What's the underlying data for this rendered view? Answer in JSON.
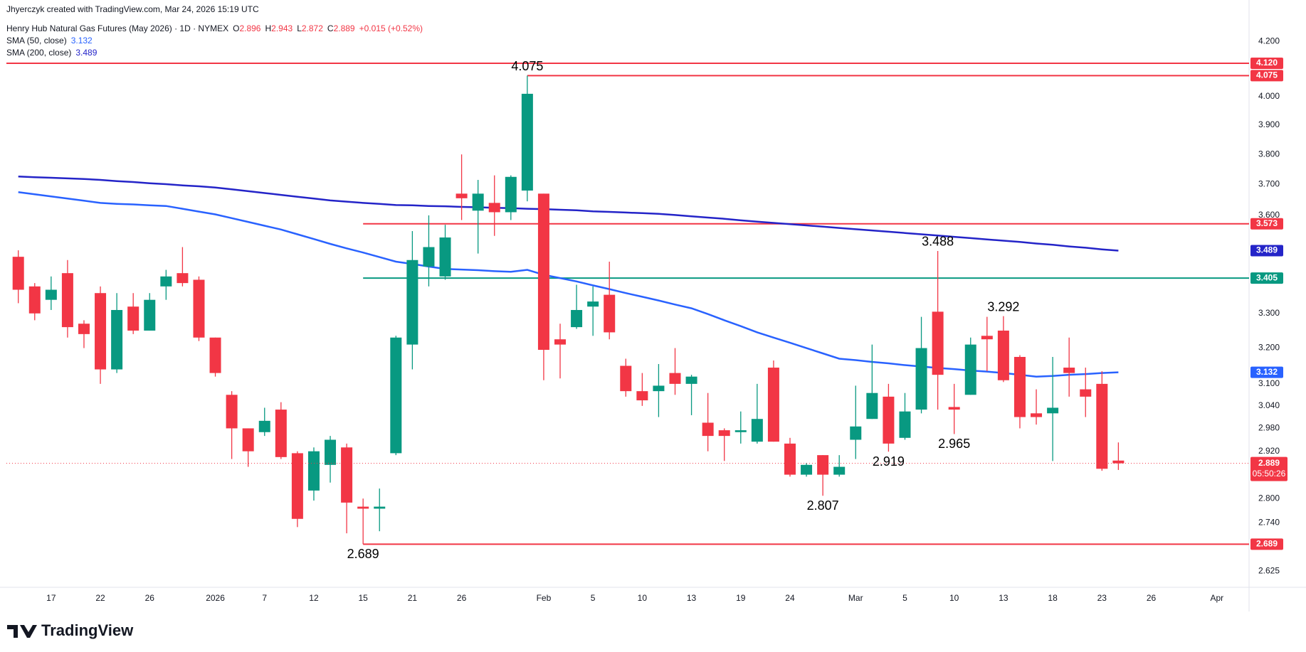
{
  "chart_data": {
    "type": "candlestick",
    "credit": "Jhyerczyk created with TradingView.com, Mar 24, 2026 15:19 UTC",
    "title": "Henry Hub Natural Gas Futures (May 2026) · 1D · NYMEX",
    "ohlc_labels": [
      "O",
      "H",
      "L",
      "C"
    ],
    "change": "+0.015 (+0.52%)",
    "brand": "TradingView",
    "log_scale": true,
    "grid": false,
    "up_color": "#089981",
    "down_color": "#f23645",
    "categories": [
      null,
      null,
      "17",
      null,
      null,
      "22",
      null,
      null,
      "26",
      null,
      null,
      null,
      "2026",
      null,
      null,
      "7",
      null,
      null,
      "12",
      null,
      null,
      "15",
      null,
      null,
      "21",
      null,
      null,
      "26",
      null,
      null,
      null,
      null,
      "Feb",
      null,
      null,
      "5",
      null,
      null,
      "10",
      null,
      null,
      "13",
      null,
      null,
      "19",
      null,
      null,
      "24",
      null,
      null,
      null,
      "Mar",
      null,
      null,
      "5",
      null,
      null,
      "10",
      null,
      null,
      "13",
      null,
      null,
      "18",
      null,
      null,
      "23",
      null,
      null,
      "26",
      null,
      null,
      null,
      "Apr",
      null
    ],
    "open": [
      3.47,
      3.38,
      3.34,
      3.42,
      3.27,
      3.36,
      3.14,
      3.32,
      3.25,
      3.38,
      3.42,
      3.4,
      3.23,
      3.07,
      2.98,
      2.97,
      3.03,
      2.915,
      2.82,
      2.885,
      2.93,
      2.78,
      2.775,
      2.915,
      3.21,
      3.44,
      3.41,
      3.67,
      3.615,
      3.64,
      3.61,
      3.68,
      3.67,
      3.225,
      3.26,
      3.32,
      3.355,
      3.15,
      3.08,
      3.08,
      3.13,
      3.1,
      2.995,
      2.975,
      2.97,
      2.945,
      3.145,
      2.94,
      2.86,
      2.91,
      2.86,
      2.95,
      3.005,
      3.065,
      2.955,
      3.03,
      3.305,
      3.037,
      3.07,
      3.235,
      3.25,
      3.175,
      3.02,
      3.02,
      3.145,
      3.085,
      3.1,
      2.896,
      null,
      null,
      null,
      null,
      null,
      null,
      null
    ],
    "high": [
      3.49,
      3.39,
      3.41,
      3.46,
      3.28,
      3.38,
      3.36,
      3.36,
      3.36,
      3.43,
      3.5,
      3.41,
      3.23,
      3.08,
      2.98,
      3.035,
      3.05,
      2.92,
      2.93,
      2.96,
      2.94,
      2.8,
      2.825,
      3.235,
      3.55,
      3.6,
      3.57,
      3.8,
      3.715,
      3.73,
      3.73,
      4.075,
      3.67,
      3.27,
      3.385,
      3.38,
      3.455,
      3.17,
      3.13,
      3.155,
      3.2,
      3.125,
      3.075,
      2.98,
      3.025,
      3.1,
      3.165,
      2.955,
      2.89,
      2.91,
      2.91,
      3.095,
      3.21,
      3.1,
      3.075,
      3.29,
      3.488,
      3.1,
      3.23,
      3.29,
      3.292,
      3.18,
      3.085,
      3.175,
      3.23,
      3.145,
      3.135,
      2.943,
      null,
      null,
      null,
      null,
      null,
      null,
      null
    ],
    "low": [
      3.33,
      3.28,
      3.31,
      3.23,
      3.2,
      3.1,
      3.13,
      3.24,
      3.25,
      3.34,
      3.38,
      3.22,
      3.12,
      2.9,
      2.88,
      2.96,
      2.9,
      2.73,
      2.795,
      2.84,
      2.715,
      2.689,
      2.72,
      2.91,
      3.14,
      3.38,
      3.4,
      3.585,
      3.48,
      3.535,
      3.585,
      3.645,
      3.11,
      3.115,
      3.255,
      3.235,
      3.225,
      3.065,
      3.04,
      3.01,
      3.07,
      3.015,
      2.92,
      2.895,
      2.94,
      2.94,
      2.945,
      2.855,
      2.855,
      2.807,
      2.855,
      2.9,
      3.005,
      2.919,
      2.95,
      3.02,
      3.03,
      2.965,
      3.07,
      3.135,
      3.105,
      2.98,
      2.99,
      2.895,
      3.065,
      3.01,
      2.87,
      2.872,
      null,
      null,
      null,
      null,
      null,
      null,
      null
    ],
    "close": [
      3.37,
      3.3,
      3.37,
      3.26,
      3.24,
      3.14,
      3.31,
      3.25,
      3.34,
      3.41,
      3.39,
      3.23,
      3.13,
      2.98,
      2.92,
      3.0,
      2.905,
      2.75,
      2.92,
      2.95,
      2.79,
      2.775,
      2.78,
      3.23,
      3.46,
      3.5,
      3.53,
      3.655,
      3.67,
      3.61,
      3.725,
      4.01,
      3.195,
      3.21,
      3.31,
      3.335,
      3.245,
      3.08,
      3.055,
      3.095,
      3.1,
      3.12,
      2.96,
      2.96,
      2.975,
      3.005,
      2.945,
      2.86,
      2.885,
      2.86,
      2.88,
      2.985,
      3.075,
      2.94,
      3.025,
      3.2,
      3.125,
      3.03,
      3.21,
      3.225,
      3.11,
      3.01,
      3.01,
      3.035,
      3.13,
      3.065,
      2.875,
      2.889,
      null,
      null,
      null,
      null,
      null,
      null,
      null
    ],
    "series": [
      {
        "name": "SMA (50, close)",
        "color": "#2962ff",
        "values": [
          3.675,
          3.668,
          3.661,
          3.654,
          3.647,
          3.64,
          3.637,
          3.635,
          3.632,
          3.63,
          3.621,
          3.612,
          3.603,
          3.591,
          3.579,
          3.567,
          3.555,
          3.54,
          3.525,
          3.51,
          3.496,
          3.483,
          3.469,
          3.455,
          3.448,
          3.44,
          3.433,
          3.431,
          3.429,
          3.426,
          3.424,
          3.43,
          3.415,
          3.405,
          3.395,
          3.383,
          3.372,
          3.36,
          3.349,
          3.338,
          3.326,
          3.315,
          3.298,
          3.28,
          3.263,
          3.245,
          3.23,
          3.215,
          3.2,
          3.185,
          3.17,
          3.166,
          3.161,
          3.157,
          3.152,
          3.148,
          3.144,
          3.141,
          3.137,
          3.134,
          3.13,
          3.125,
          3.12,
          3.122,
          3.125,
          3.127,
          3.13,
          3.132,
          null,
          null,
          null,
          null,
          null,
          null,
          null
        ]
      },
      {
        "name": "SMA (200, close)",
        "color": "#2424c8",
        "values": [
          3.726,
          3.724,
          3.722,
          3.72,
          3.718,
          3.715,
          3.711,
          3.708,
          3.704,
          3.701,
          3.697,
          3.694,
          3.69,
          3.684,
          3.678,
          3.672,
          3.666,
          3.66,
          3.654,
          3.648,
          3.644,
          3.64,
          3.637,
          3.633,
          3.632,
          3.63,
          3.629,
          3.627,
          3.626,
          3.624,
          3.623,
          3.621,
          3.62,
          3.618,
          3.616,
          3.613,
          3.611,
          3.609,
          3.607,
          3.605,
          3.601,
          3.597,
          3.593,
          3.589,
          3.584,
          3.58,
          3.576,
          3.572,
          3.568,
          3.564,
          3.56,
          3.556,
          3.552,
          3.548,
          3.544,
          3.54,
          3.536,
          3.532,
          3.528,
          3.524,
          3.52,
          3.516,
          3.511,
          3.507,
          3.502,
          3.498,
          3.493,
          3.489,
          null,
          null,
          null,
          null,
          null,
          null,
          null
        ]
      }
    ],
    "levels": [
      {
        "value": 4.12,
        "label": "4.120",
        "color": "#f23645"
      },
      {
        "value": 4.075,
        "color": "#f23645"
      },
      {
        "value": 3.573,
        "color": "#f23645"
      },
      {
        "value": 3.405,
        "color": "#089981"
      },
      {
        "value": 2.689,
        "color": "#f23645"
      }
    ],
    "annotations": [
      "4.075",
      "3.488",
      "3.292",
      "2.965",
      "2.919",
      "2.807",
      "2.689"
    ],
    "countdown": "05:50:26",
    "ylim": [
      2.588,
      4.358
    ],
    "yticks": [
      {
        "value": 4.2,
        "label": "4.200"
      },
      {
        "value": 4.0,
        "label": "4.000"
      },
      {
        "value": 3.9,
        "label": "3.900"
      },
      {
        "value": 3.8,
        "label": "3.800"
      },
      {
        "value": 3.7,
        "label": "3.700"
      },
      {
        "value": 3.6,
        "label": "3.600"
      },
      {
        "value": 3.3,
        "label": "3.300"
      },
      {
        "value": 3.2,
        "label": "3.200"
      },
      {
        "value": 3.1,
        "label": "3.100"
      },
      {
        "value": 3.04,
        "label": "3.040"
      },
      {
        "value": 2.98,
        "label": "2.980"
      },
      {
        "value": 2.92,
        "label": "2.920"
      },
      {
        "value": 2.8,
        "label": "2.800"
      },
      {
        "value": 2.74,
        "label": "2.740"
      },
      2.625
    ]
  }
}
